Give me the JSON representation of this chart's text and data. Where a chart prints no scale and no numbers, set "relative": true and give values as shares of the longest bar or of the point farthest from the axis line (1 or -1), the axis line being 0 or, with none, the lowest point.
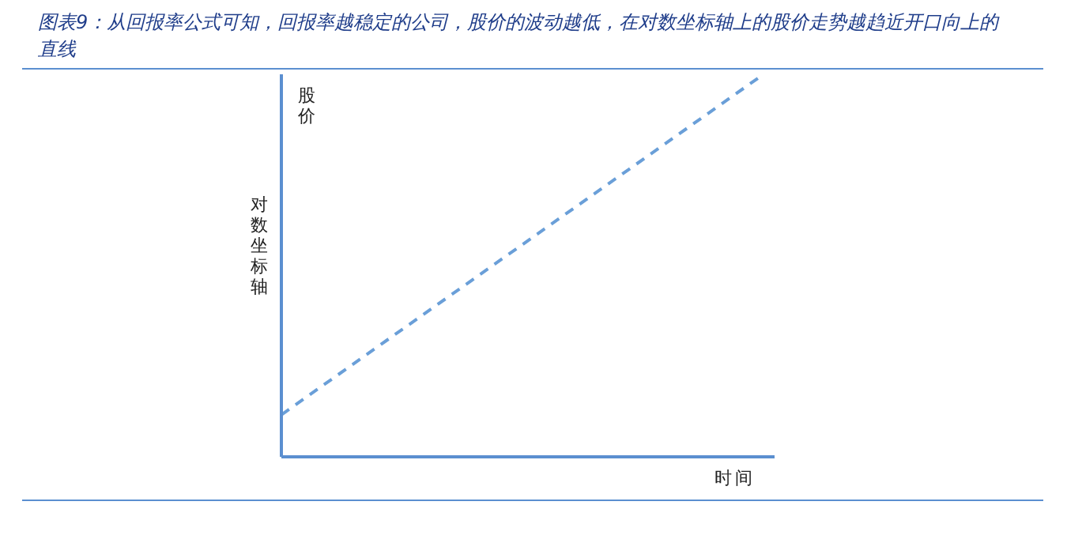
{
  "chart_data": {
    "type": "line",
    "title": "图表9：从回报率公式可知，回报率越稳定的公司，股价的波动越低，在对数坐标轴上的股价走势越趋近开口向上的直线",
    "xlabel": "时间",
    "ylabel": "对数坐标轴",
    "annotations": [
      "股价"
    ],
    "categories": [
      null,
      null
    ],
    "series": [
      {
        "color": "#6a9fd8",
        "values": [
          0.11,
          1
        ]
      }
    ],
    "relative": true,
    "line_style": "dashed",
    "marker": "none",
    "grid": false,
    "legend": false
  }
}
